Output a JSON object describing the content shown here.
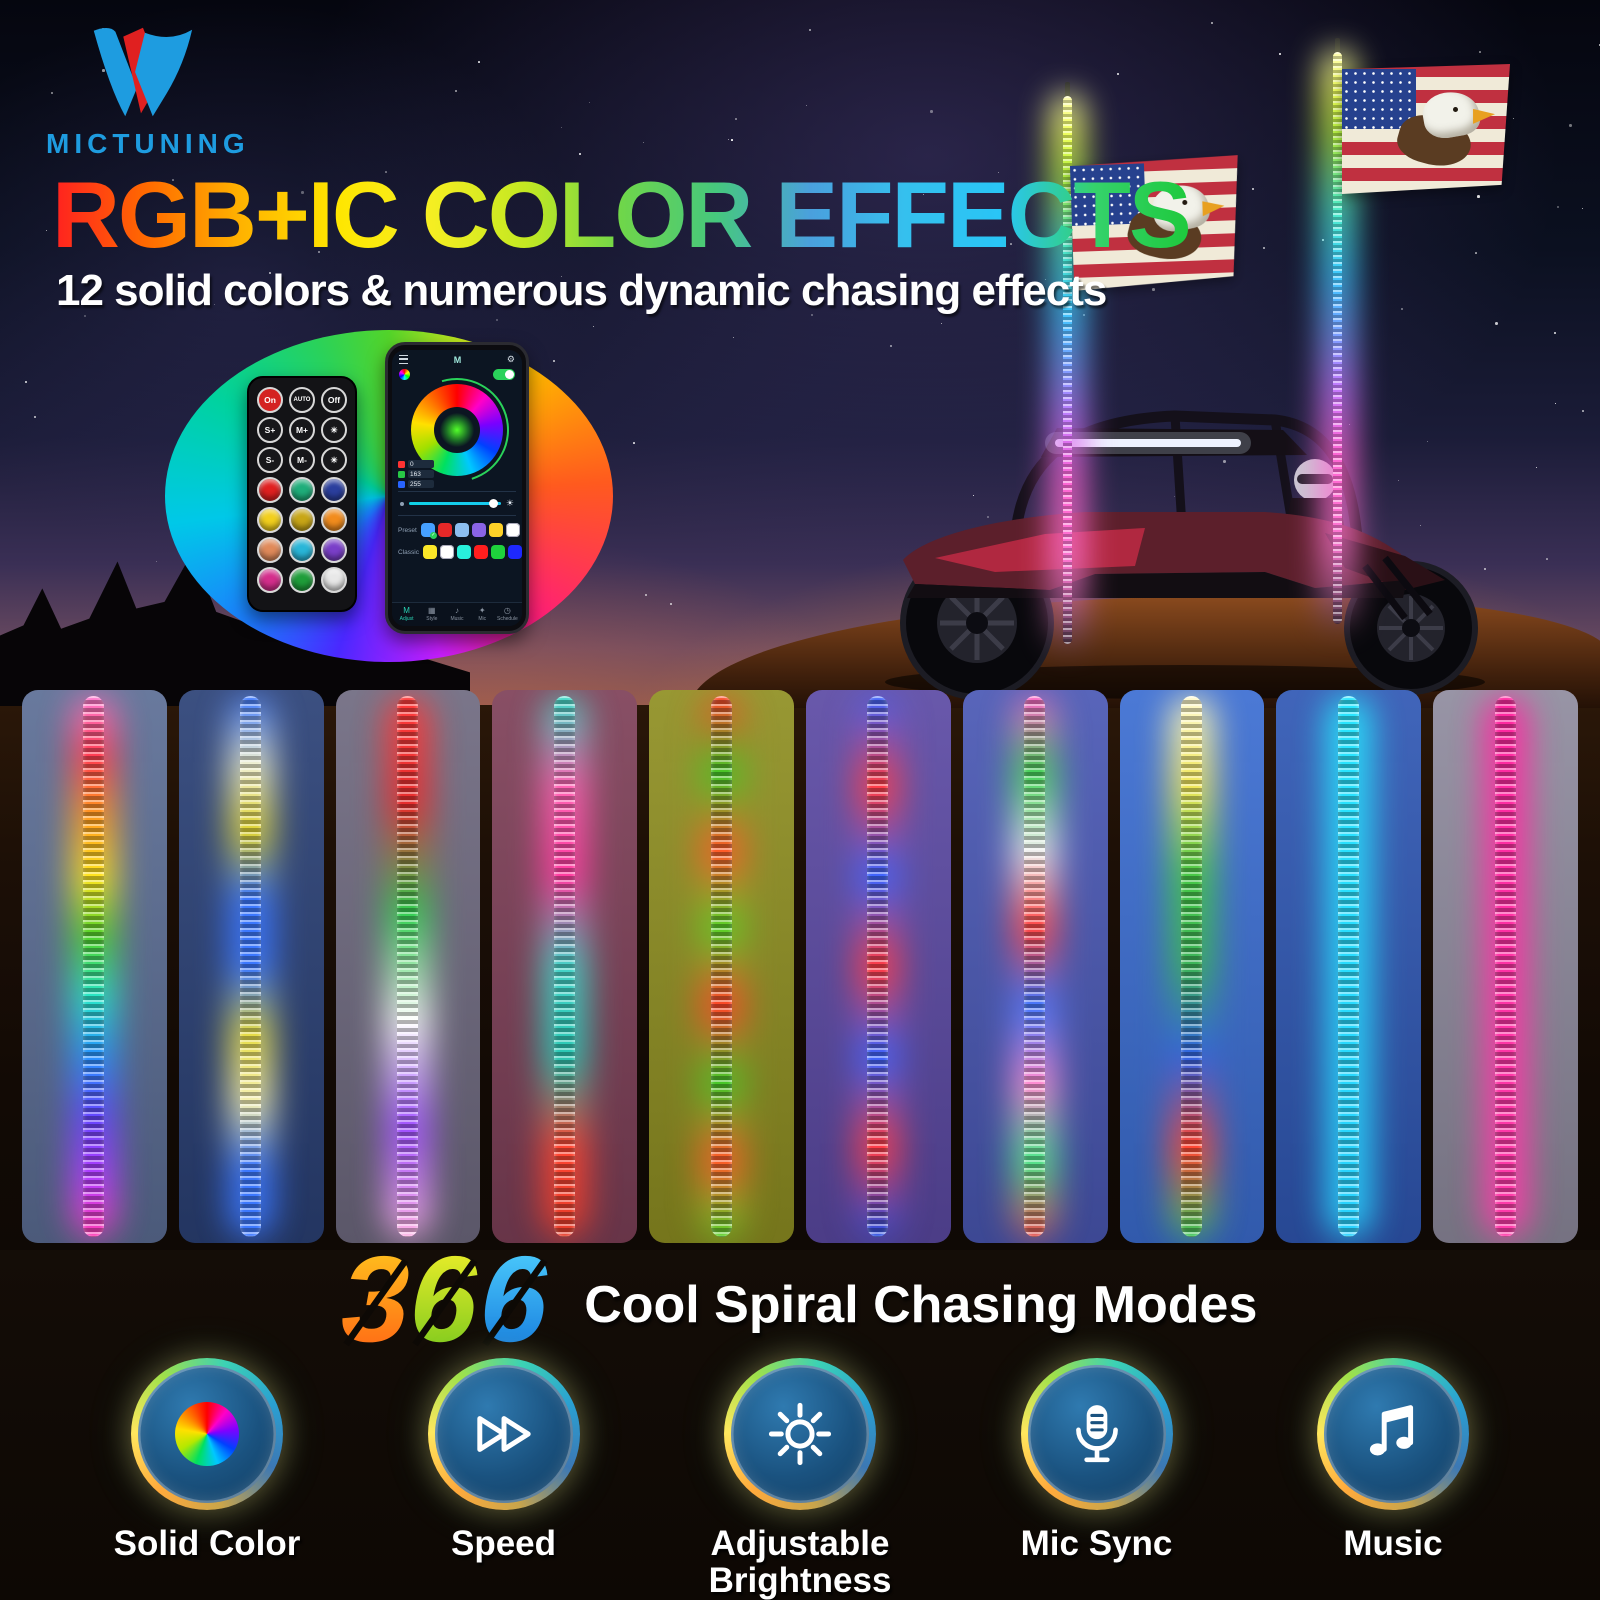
{
  "brand": {
    "name": "MICTUNING",
    "accent_blue": "#1e9ce0",
    "logo_red": "#e02020"
  },
  "header": {
    "title": "RGB+IC COLOR EFFECTS",
    "subtitle": "12 solid colors & numerous dynamic chasing effects",
    "title_gradient": [
      "#ff2020",
      "#ff6a00",
      "#ffb300",
      "#ffe600",
      "#f5ee22",
      "#c3e822",
      "#6fd64a",
      "#46c87d",
      "#4aa0dd",
      "#35c0ee",
      "#29c5f6",
      "#35d26b",
      "#1ec93c"
    ]
  },
  "remote": {
    "key_rows": [
      [
        {
          "label": "On",
          "bg": "#d42222",
          "name": "remote-on-button"
        },
        {
          "label": "AUTO",
          "name": "remote-auto-button"
        },
        {
          "label": "Off",
          "name": "remote-off-button"
        }
      ],
      [
        {
          "label": "S+",
          "name": "remote-speed-up-button"
        },
        {
          "label": "M+",
          "name": "remote-mode-up-button"
        },
        {
          "label": "☀",
          "icon": "brightness-up-icon",
          "name": "remote-brightness-up-button"
        }
      ],
      [
        {
          "label": "S-",
          "name": "remote-speed-down-button"
        },
        {
          "label": "M-",
          "name": "remote-mode-down-button"
        },
        {
          "label": "☀",
          "icon": "brightness-down-icon",
          "name": "remote-brightness-down-button"
        }
      ]
    ],
    "color_buttons": [
      "#e02020",
      "#1fae7a",
      "#2b3f9e",
      "#f2cf1d",
      "#c8a616",
      "#f28c1d",
      "#e08a5a",
      "#29b6d8",
      "#7a3fc9",
      "#d42e8c",
      "#1f9e3a",
      "#e8e8e8"
    ]
  },
  "phone": {
    "topbar_icons": [
      "menu-icon",
      "app-logo-icon",
      "settings-gear-icon"
    ],
    "toggle_on": true,
    "rgb": [
      {
        "channel": "R",
        "color": "#ff3232",
        "value": "0"
      },
      {
        "channel": "G",
        "color": "#28c846",
        "value": "163"
      },
      {
        "channel": "B",
        "color": "#2864ff",
        "value": "255"
      }
    ],
    "brightness_percent": 93,
    "preset_label": "Preset",
    "preset_colors": [
      "#46a0ff",
      "#e62828",
      "#8cbef0",
      "#8a64e6",
      "#ffd228",
      "#ffffff"
    ],
    "classic_label": "Classic",
    "classic_colors": [
      "#fae628",
      "#ffffff",
      "#28f0dc",
      "#ff1e1e",
      "#1ed23c",
      "#1e28ff"
    ],
    "nav": [
      {
        "label": "Adjust",
        "icon": "m-logo-icon",
        "active": true
      },
      {
        "label": "Style",
        "icon": "grid-icon",
        "active": false
      },
      {
        "label": "Music",
        "icon": "music-icon",
        "active": false
      },
      {
        "label": "Mic",
        "icon": "mic-icon",
        "active": false
      },
      {
        "label": "Schedule",
        "icon": "clock-icon",
        "active": false
      }
    ]
  },
  "panels": [
    {
      "mode": "rainbow-chase",
      "bg": "#5c6e95",
      "stops": [
        "#ff7ad2",
        "#ff3c50",
        "#ff9a1e",
        "#ffe41e",
        "#50d22a",
        "#28e6c8",
        "#2892ff",
        "#6446ff",
        "#b43cff",
        "#ff3cb4"
      ]
    },
    {
      "mode": "blue-yellow-chase",
      "bg": "#2b4176",
      "stops": [
        "#3c78ff",
        "#f0f0d2",
        "#ded232",
        "#3c78ff",
        "#3c78ff",
        "#e6dc46",
        "#f5f0b4",
        "#3c78ff",
        "#3c78ff"
      ]
    },
    {
      "mode": "red-green-white-purple",
      "bg": "#6f6a80",
      "stops": [
        "#ff3c3c",
        "#e62e2e",
        "#32cd50",
        "#ffffff",
        "#a050ff",
        "#ffb4e6"
      ]
    },
    {
      "mode": "teal-pink-red-chase",
      "bg": "#7e4058",
      "stops": [
        "#3cdcc8",
        "#ff64b4",
        "#ff3ca0",
        "#46d2c8",
        "#2ac8b4",
        "#ff4632",
        "#e63c2a"
      ]
    },
    {
      "mode": "red-green-mix",
      "bg": "#8f8f22",
      "stops": [
        "#ff4628",
        "#46c828",
        "#ff5a28",
        "#5ad228",
        "#ff4628",
        "#46c828",
        "#ff5a28",
        "#5ad228"
      ]
    },
    {
      "mode": "blue-red-chase",
      "bg": "#5c4aa4",
      "stops": [
        "#3c64ff",
        "#ff3c46",
        "#3c64ff",
        "#ff3c46",
        "#3c64ff",
        "#ff3c46",
        "#2850e6"
      ]
    },
    {
      "mode": "multicolor-confetti",
      "bg": "#4a58b4",
      "stops": [
        "#ff64c8",
        "#46d25a",
        "#f0f0f0",
        "#ff4646",
        "#4678ff",
        "#ff8cd2",
        "#50e68c",
        "#e65050"
      ]
    },
    {
      "mode": "yellow-green-blue-red",
      "bg": "#3c6ed2",
      "stops": [
        "#fffad2",
        "#f0e65a",
        "#46c846",
        "#3cb45a",
        "#3264e6",
        "#ff4632",
        "#3cc85a"
      ]
    },
    {
      "mode": "solid-cyan",
      "bg": "#3058b4",
      "stops": [
        "#28e6ff",
        "#28d2ff"
      ]
    },
    {
      "mode": "solid-pink",
      "bg": "#8f8b9e",
      "stops": [
        "#ff28a0",
        "#ff3caa"
      ]
    }
  ],
  "modes": {
    "number": "366",
    "digits": [
      {
        "char": "3",
        "gradient": [
          "#ffc81e",
          "#ff6414"
        ]
      },
      {
        "char": "6",
        "gradient": [
          "#f5f02a",
          "#78c81e"
        ]
      },
      {
        "char": "6",
        "gradient": [
          "#50d2ff",
          "#1478dc"
        ]
      }
    ],
    "caption": "Cool Spiral Chasing Modes"
  },
  "features": [
    {
      "label": "Solid Color",
      "icon": "color-wheel-icon"
    },
    {
      "label": "Speed",
      "icon": "fast-forward-icon"
    },
    {
      "label": "Adjustable Brightness",
      "icon": "brightness-icon"
    },
    {
      "label": "Mic Sync",
      "icon": "microphone-icon"
    },
    {
      "label": "Music",
      "icon": "music-note-icon"
    }
  ]
}
